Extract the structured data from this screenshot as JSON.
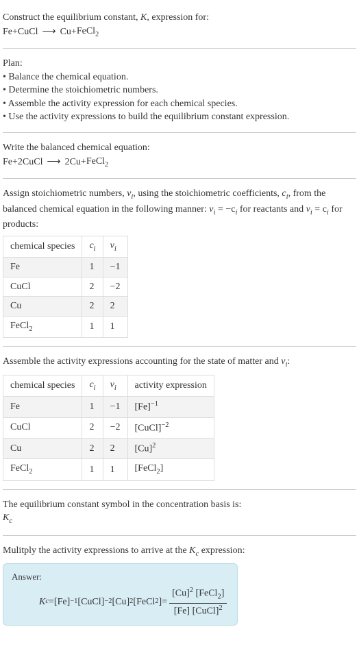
{
  "intro": {
    "line1_prefix": "Construct the equilibrium constant, ",
    "K": "K",
    "line1_suffix": ", expression for:",
    "reaction_lhs_1": "Fe",
    "plus": " + ",
    "reaction_lhs_2": "CuCl",
    "arrow": "⟶",
    "reaction_rhs_1": "Cu",
    "reaction_rhs_2": "FeCl",
    "sub2": "2"
  },
  "plan": {
    "title": "Plan:",
    "b1": "• Balance the chemical equation.",
    "b2": "• Determine the stoichiometric numbers.",
    "b3": "• Assemble the activity expression for each chemical species.",
    "b4": "• Use the activity expressions to build the equilibrium constant expression."
  },
  "balanced": {
    "title": "Write the balanced chemical equation:",
    "lhs1": "Fe",
    "plus": " + ",
    "coef2": "2 ",
    "lhs2": "CuCl",
    "arrow": "⟶",
    "rcoef1": "2 ",
    "rhs1": "Cu",
    "rhs2": "FeCl",
    "sub2": "2"
  },
  "assign": {
    "text_a": "Assign stoichiometric numbers, ",
    "nu_i": "ν",
    "sub_i": "i",
    "text_b": ", using the stoichiometric coefficients, ",
    "c_i": "c",
    "text_c": ", from the balanced chemical equation in the following manner: ",
    "eq1": "ν",
    "eq1b": " = −c",
    "text_d": " for reactants and ",
    "eq2": "ν",
    "eq2b": " = c",
    "text_e": " for products:"
  },
  "table1": {
    "h1": "chemical species",
    "h2": "c",
    "h2sub": "i",
    "h3": "ν",
    "h3sub": "i",
    "rows": [
      {
        "sp": "Fe",
        "spsub": "",
        "c": "1",
        "v": "−1"
      },
      {
        "sp": "CuCl",
        "spsub": "",
        "c": "2",
        "v": "−2"
      },
      {
        "sp": "Cu",
        "spsub": "",
        "c": "2",
        "v": "2"
      },
      {
        "sp": "FeCl",
        "spsub": "2",
        "c": "1",
        "v": "1"
      }
    ]
  },
  "assemble": {
    "text_a": "Assemble the activity expressions accounting for the state of matter and ",
    "nu": "ν",
    "sub_i": "i",
    "text_b": ":"
  },
  "table2": {
    "h1": "chemical species",
    "h2": "c",
    "h2sub": "i",
    "h3": "ν",
    "h3sub": "i",
    "h4": "activity expression",
    "rows": [
      {
        "sp": "Fe",
        "spsub": "",
        "c": "1",
        "v": "−1",
        "act_base": "[Fe]",
        "act_sup": "−1"
      },
      {
        "sp": "CuCl",
        "spsub": "",
        "c": "2",
        "v": "−2",
        "act_base": "[CuCl]",
        "act_sup": "−2"
      },
      {
        "sp": "Cu",
        "spsub": "",
        "c": "2",
        "v": "2",
        "act_base": "[Cu]",
        "act_sup": "2"
      },
      {
        "sp": "FeCl",
        "spsub": "2",
        "c": "1",
        "v": "1",
        "act_base": "[FeCl",
        "act_subin": "2",
        "act_close": "]",
        "act_sup": ""
      }
    ]
  },
  "symbol": {
    "text": "The equilibrium constant symbol in the concentration basis is:",
    "K": "K",
    "sub_c": "c"
  },
  "multiply": {
    "text_a": "Mulitply the activity expressions to arrive at the ",
    "K": "K",
    "sub_c": "c",
    "text_b": " expression:"
  },
  "answer": {
    "label": "Answer:",
    "Kc": "K",
    "Kc_sub": "c",
    "eq": " = ",
    "t1": "[Fe]",
    "t1sup": "−1",
    "t2": " [CuCl]",
    "t2sup": "−2",
    "t3": " [Cu]",
    "t3sup": "2",
    "t4": " [FeCl",
    "t4sub": "2",
    "t4close": "]",
    "eq2": " = ",
    "num1": "[Cu]",
    "num1sup": "2",
    "num2": " [FeCl",
    "num2sub": "2",
    "num2close": "]",
    "den1": "[Fe] [CuCl]",
    "den1sup": "2"
  },
  "colors": {
    "text": "#333333",
    "rule": "#cccccc",
    "table_border": "#dddddd",
    "table_alt": "#f3f3f3",
    "answer_bg": "#d9edf5",
    "answer_border": "#b8dce8"
  },
  "fonts": {
    "body_size_pt": 11,
    "family": "Georgia, serif"
  }
}
